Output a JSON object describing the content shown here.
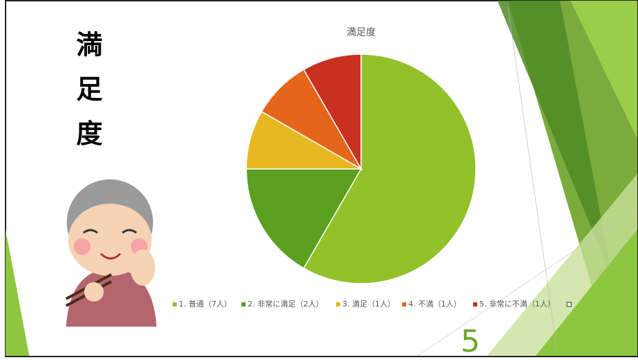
{
  "slide": {
    "heading": "満足度",
    "number": "5"
  },
  "chart_data": {
    "type": "pie",
    "title": "満足度",
    "categories": [
      "1. 普通（7人）",
      "2. 非常に満足（2人）",
      "3. 満足（1人）",
      "4. 不満（1人）",
      "5. 非常に不満（1人）"
    ],
    "values": [
      7,
      2,
      1,
      1,
      1
    ],
    "colors": [
      "#92c12a",
      "#5ba021",
      "#e6b920",
      "#e5661a",
      "#c9301f"
    ],
    "legend": "bottom"
  }
}
